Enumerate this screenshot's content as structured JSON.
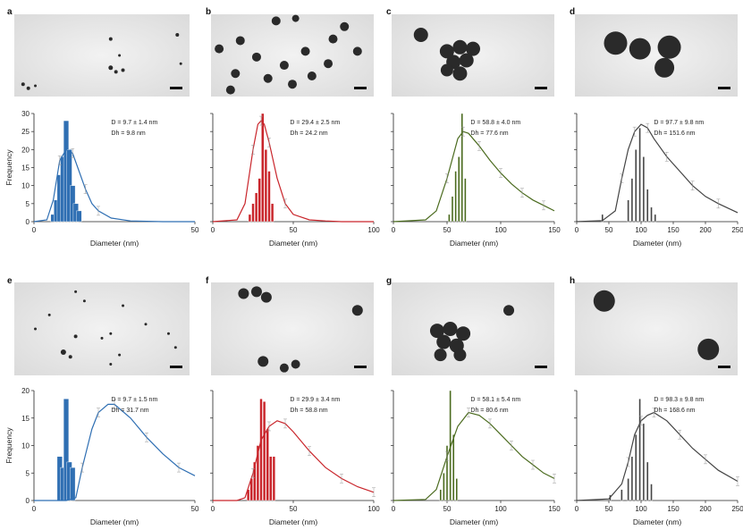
{
  "figure": {
    "ylabel": "Frequency",
    "xlabel": "Diameter (nm)"
  },
  "panels": [
    {
      "letter": "a",
      "color": "#2f6fb3",
      "stat_D": "D = 9.7 ± 1.4 nm",
      "stat_Dh": "Dh = 9.8 nm",
      "particles": "few-small"
    },
    {
      "letter": "b",
      "color": "#c9252b",
      "stat_D": "D = 29.4 ± 2.5 nm",
      "stat_Dh": "Dh = 24.2 nm",
      "particles": "dispersed"
    },
    {
      "letter": "c",
      "color": "#4b6b1f",
      "stat_D": "D = 58.8 ± 4.0 nm",
      "stat_Dh": "Dh = 77.6 nm",
      "particles": "cluster"
    },
    {
      "letter": "d",
      "color": "#444444",
      "stat_D": "D = 97.7 ± 9.8 nm",
      "stat_Dh": "Dh = 151.6 nm",
      "particles": "large-cluster"
    },
    {
      "letter": "e",
      "color": "#2f6fb3",
      "stat_D": "D = 9.7 ± 1.5 nm",
      "stat_Dh": "Dh = 31.7 nm",
      "particles": "tiny-dots"
    },
    {
      "letter": "f",
      "color": "#c9252b",
      "stat_D": "D = 29.9 ± 3.4 nm",
      "stat_Dh": "Dh = 58.8 nm",
      "particles": "sparse"
    },
    {
      "letter": "g",
      "color": "#4b6b1f",
      "stat_D": "D = 58.1 ± 5.4 nm",
      "stat_Dh": "Dh = 80.6 nm",
      "particles": "cluster-plus-one"
    },
    {
      "letter": "h",
      "color": "#444444",
      "stat_D": "D = 98.3 ± 9.8 nm",
      "stat_Dh": "Dh = 168.6 nm",
      "particles": "two-large"
    }
  ],
  "chart_data": [
    {
      "panel": "a",
      "type": "bar+line",
      "xlim": [
        0,
        50
      ],
      "ylim": [
        0,
        30
      ],
      "xticks": [
        0,
        50
      ],
      "yticks": [
        0,
        5,
        10,
        15,
        20,
        25,
        30
      ],
      "xlabel": "Diameter (nm)",
      "ylabel": "Frequency",
      "histogram": {
        "x": [
          6,
          7,
          8,
          9,
          10,
          11,
          12,
          13,
          14
        ],
        "values": [
          2,
          6,
          13,
          18,
          28,
          20,
          10,
          5,
          3
        ]
      },
      "curve": {
        "x": [
          0,
          4,
          6,
          8,
          10,
          12,
          14,
          16,
          18,
          20,
          24,
          30,
          40,
          50
        ],
        "values": [
          0,
          0.5,
          6,
          17,
          20,
          19,
          14,
          9,
          5,
          3,
          1,
          0.2,
          0,
          0
        ]
      }
    },
    {
      "panel": "b",
      "type": "bar+line",
      "xlim": [
        0,
        100
      ],
      "ylim": [
        0,
        30
      ],
      "xticks": [
        0,
        50,
        100
      ],
      "yticks": [
        0,
        5,
        10,
        15,
        20,
        25,
        30
      ],
      "xlabel": "Diameter (nm)",
      "ylabel": "Frequency",
      "histogram": {
        "x": [
          23,
          25,
          27,
          29,
          31,
          33,
          35,
          37
        ],
        "values": [
          2,
          5,
          8,
          12,
          30,
          20,
          14,
          5
        ]
      },
      "curve": {
        "x": [
          0,
          15,
          20,
          25,
          28,
          30,
          32,
          35,
          40,
          45,
          50,
          60,
          70,
          80,
          100
        ],
        "values": [
          0,
          0.5,
          5,
          20,
          27,
          28,
          27,
          22,
          12,
          5,
          2,
          0.5,
          0.2,
          0,
          0
        ]
      }
    },
    {
      "panel": "c",
      "type": "bar+line",
      "xlim": [
        0,
        150
      ],
      "ylim": [
        0,
        30
      ],
      "xticks": [
        0,
        50,
        100,
        150
      ],
      "yticks": [
        0,
        5,
        10,
        15,
        20,
        25,
        30
      ],
      "xlabel": "Diameter (nm)",
      "ylabel": "Frequency",
      "histogram": {
        "x": [
          52,
          55,
          58,
          61,
          64,
          67
        ],
        "values": [
          2,
          7,
          14,
          18,
          30,
          12
        ]
      },
      "curve": {
        "x": [
          0,
          30,
          40,
          50,
          60,
          65,
          70,
          80,
          90,
          100,
          110,
          120,
          130,
          140,
          150
        ],
        "values": [
          0,
          0.5,
          3,
          12,
          23,
          25,
          24.5,
          21,
          17,
          13.5,
          10.5,
          8,
          6,
          4.5,
          3
        ]
      }
    },
    {
      "panel": "d",
      "type": "bar+line",
      "xlim": [
        0,
        250
      ],
      "ylim": [
        0,
        30
      ],
      "xticks": [
        0,
        50,
        100,
        150,
        200,
        250
      ],
      "yticks": [
        0,
        5,
        10,
        15,
        20,
        25,
        30
      ],
      "xlabel": "Diameter (nm)",
      "ylabel": "Frequency",
      "histogram": {
        "x": [
          40,
          80,
          86,
          92,
          98,
          104,
          110,
          116,
          122
        ],
        "values": [
          2,
          6,
          12,
          20,
          26,
          18,
          9,
          4,
          2
        ]
      },
      "curve": {
        "x": [
          0,
          40,
          60,
          70,
          80,
          90,
          100,
          110,
          120,
          140,
          160,
          180,
          200,
          220,
          250
        ],
        "values": [
          0,
          0.3,
          3,
          12,
          20,
          25,
          27,
          26,
          23,
          18,
          14,
          10,
          7,
          5,
          2.5
        ]
      }
    },
    {
      "panel": "e",
      "type": "bar+line",
      "xlim": [
        0,
        50
      ],
      "ylim": [
        0,
        20
      ],
      "xticks": [
        0,
        50
      ],
      "yticks": [
        0,
        5,
        10,
        15,
        20
      ],
      "xlabel": "Diameter (nm)",
      "ylabel": "Frequency",
      "histogram": {
        "x": [
          8,
          9,
          10,
          11,
          12
        ],
        "values": [
          8,
          6,
          18.5,
          7,
          6
        ]
      },
      "curve": {
        "x": [
          0,
          10,
          13,
          15,
          18,
          20,
          23,
          25,
          30,
          35,
          40,
          45,
          50
        ],
        "values": [
          0,
          0,
          0.5,
          6,
          13,
          16,
          17.5,
          17.5,
          15,
          11.5,
          8.5,
          6,
          4.5
        ]
      }
    },
    {
      "panel": "f",
      "type": "bar+line",
      "xlim": [
        0,
        100
      ],
      "ylim": [
        0,
        20
      ],
      "xticks": [
        0,
        50,
        100
      ],
      "yticks": [
        0,
        5,
        10,
        15,
        20
      ],
      "xlabel": "Diameter (nm)",
      "ylabel": "Frequency",
      "histogram": {
        "x": [
          22,
          24,
          26,
          28,
          30,
          32,
          34,
          36,
          38
        ],
        "values": [
          2,
          4,
          7,
          10,
          18.5,
          18,
          13,
          8,
          8
        ]
      },
      "curve": {
        "x": [
          0,
          15,
          20,
          25,
          30,
          35,
          40,
          45,
          50,
          60,
          70,
          80,
          90,
          100
        ],
        "values": [
          0,
          0,
          0.5,
          5,
          11,
          13.5,
          14.5,
          14,
          12.5,
          9,
          6,
          4,
          2.5,
          1.5
        ]
      }
    },
    {
      "panel": "g",
      "type": "bar+line",
      "xlim": [
        0,
        150
      ],
      "ylim": [
        0,
        20
      ],
      "xticks": [
        0,
        50,
        100,
        150
      ],
      "yticks": [
        0,
        5,
        10,
        15,
        20
      ],
      "xlabel": "Diameter (nm)",
      "ylabel": "Frequency",
      "histogram": {
        "x": [
          44,
          47,
          50,
          53,
          56,
          59
        ],
        "values": [
          2,
          5,
          10,
          20,
          12,
          4
        ]
      },
      "curve": {
        "x": [
          0,
          30,
          40,
          50,
          60,
          70,
          80,
          90,
          100,
          110,
          120,
          130,
          140,
          150
        ],
        "values": [
          0,
          0.2,
          2,
          8,
          13.5,
          16,
          15.5,
          14,
          12,
          10,
          8,
          6.5,
          5,
          4
        ]
      }
    },
    {
      "panel": "h",
      "type": "bar+line",
      "xlim": [
        0,
        250
      ],
      "ylim": [
        0,
        20
      ],
      "xticks": [
        0,
        50,
        100,
        150,
        200,
        250
      ],
      "yticks": [
        0,
        5,
        10,
        15,
        20
      ],
      "xlabel": "Diameter (nm)",
      "ylabel": "Frequency",
      "histogram": {
        "x": [
          52,
          70,
          80,
          86,
          92,
          98,
          104,
          110,
          116
        ],
        "values": [
          1,
          2,
          4,
          8,
          12,
          18.5,
          14,
          7,
          3
        ]
      },
      "curve": {
        "x": [
          0,
          50,
          70,
          80,
          90,
          100,
          110,
          120,
          140,
          160,
          180,
          200,
          220,
          250
        ],
        "values": [
          0,
          0.3,
          3,
          7,
          12,
          14.5,
          15.5,
          16,
          14.5,
          12,
          9.5,
          7.5,
          5.5,
          3.5
        ]
      }
    }
  ]
}
